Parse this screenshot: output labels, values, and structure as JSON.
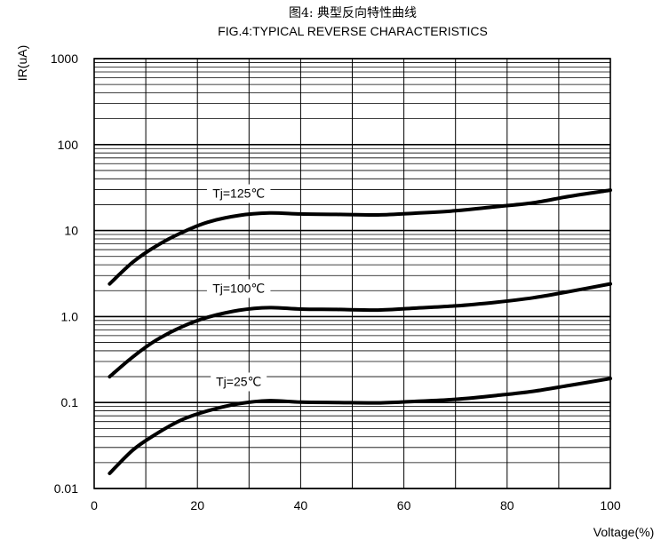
{
  "chart_data": {
    "type": "line",
    "title": "图4: 典型反向特性曲线",
    "subtitle": "FIG.4:TYPICAL REVERSE CHARACTERISTICS",
    "xlabel": "Voltage(%)",
    "ylabel": "IR(uA)",
    "xlim": [
      0,
      100
    ],
    "ylim": [
      0.01,
      1000
    ],
    "yscale": "log",
    "grid": true,
    "x_ticks": [
      0,
      20,
      40,
      60,
      80,
      100
    ],
    "x_tick_labels": [
      "0",
      "20",
      "40",
      "60",
      "80",
      "100"
    ],
    "y_ticks": [
      0.01,
      0.1,
      1,
      10,
      100,
      1000
    ],
    "y_tick_labels": [
      "0.01",
      "0.1",
      "1.0",
      "10",
      "100",
      "1000"
    ],
    "series": [
      {
        "name": "Tj=125℃",
        "x": [
          3,
          7.5,
          12,
          17,
          22,
          28,
          34,
          40,
          47,
          55,
          62,
          70,
          78,
          85,
          92,
          100
        ],
        "y": [
          2.4,
          4.3,
          6.6,
          9.5,
          12.5,
          15,
          16,
          15.6,
          15.4,
          15.2,
          15.9,
          17,
          19,
          21,
          25,
          29.5
        ]
      },
      {
        "name": "Tj=100℃",
        "x": [
          3,
          7.5,
          12,
          17,
          22,
          28,
          34,
          40,
          47,
          55,
          62,
          70,
          78,
          85,
          92,
          100
        ],
        "y": [
          0.2,
          0.34,
          0.53,
          0.76,
          0.98,
          1.18,
          1.27,
          1.22,
          1.21,
          1.19,
          1.25,
          1.33,
          1.47,
          1.65,
          1.95,
          2.4
        ]
      },
      {
        "name": "Tj=25℃",
        "x": [
          3,
          7.5,
          12,
          17,
          22,
          28,
          34,
          40,
          47,
          55,
          62,
          70,
          78,
          85,
          92,
          100
        ],
        "y": [
          0.015,
          0.028,
          0.043,
          0.063,
          0.08,
          0.097,
          0.105,
          0.101,
          0.1,
          0.099,
          0.103,
          0.109,
          0.121,
          0.135,
          0.158,
          0.19
        ]
      }
    ]
  }
}
